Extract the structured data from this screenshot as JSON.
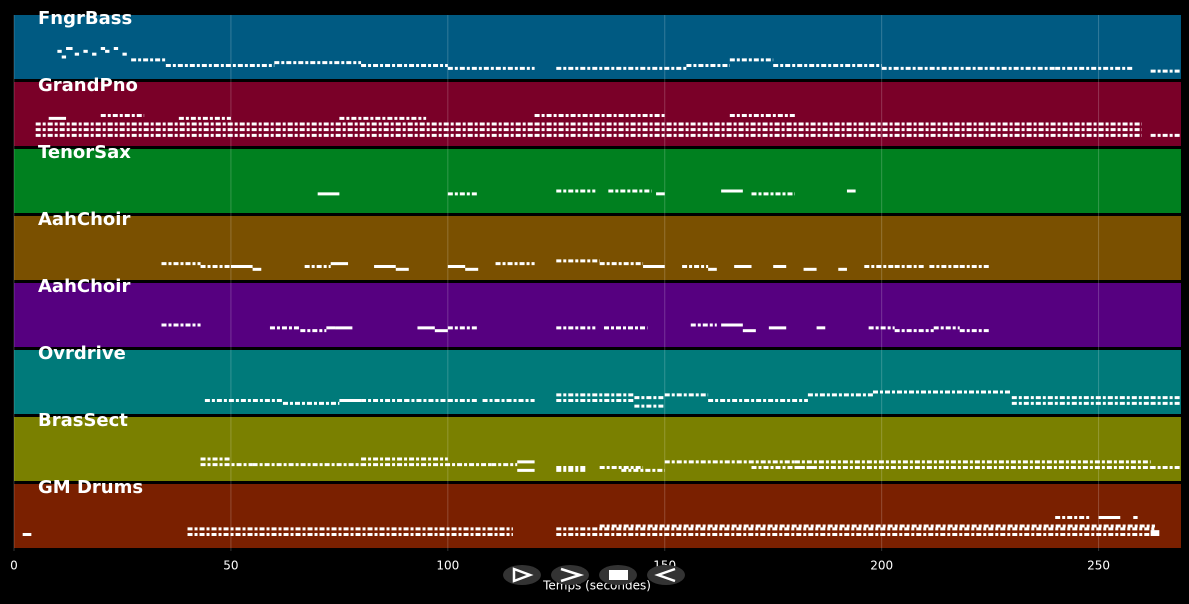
{
  "chart_data": {
    "type": "pianoroll",
    "xlabel": "Temps (secondes)",
    "xlim": [
      0,
      269
    ],
    "xticks": [
      0,
      50,
      100,
      150,
      200,
      250
    ],
    "plim": [
      0,
      12
    ],
    "grid": true,
    "tracks": [
      {
        "name": "FngrBass",
        "color": "#005a82",
        "notes": [
          [
            10,
            11,
            8
          ],
          [
            11,
            12,
            6
          ],
          [
            12,
            13.5,
            9
          ],
          [
            14,
            15,
            7
          ],
          [
            16,
            17,
            8
          ],
          [
            18,
            19,
            7
          ],
          [
            20,
            21,
            9
          ],
          [
            21,
            22,
            8
          ],
          [
            23,
            24,
            9
          ],
          [
            25,
            26,
            7
          ],
          [
            27,
            35,
            5
          ],
          [
            35,
            60,
            3
          ],
          [
            60,
            80,
            4
          ],
          [
            80,
            100,
            3
          ],
          [
            100,
            120,
            2
          ],
          [
            125,
            155,
            2
          ],
          [
            155,
            165,
            3
          ],
          [
            165,
            175,
            5
          ],
          [
            175,
            200,
            3
          ],
          [
            200,
            240,
            2
          ],
          [
            240,
            258,
            2
          ],
          [
            262,
            269,
            1
          ]
        ]
      },
      {
        "name": "GrandPno",
        "color": "#7a0028",
        "notes": [
          [
            5,
            120,
            6
          ],
          [
            5,
            120,
            4
          ],
          [
            5,
            120,
            2
          ],
          [
            120,
            260,
            6
          ],
          [
            120,
            260,
            4
          ],
          [
            120,
            260,
            2
          ],
          [
            262,
            269,
            2
          ],
          [
            8,
            12,
            8
          ],
          [
            20,
            30,
            9
          ],
          [
            38,
            50,
            8
          ],
          [
            75,
            95,
            8
          ],
          [
            120,
            150,
            9
          ],
          [
            165,
            180,
            9
          ]
        ]
      },
      {
        "name": "TenorSax",
        "color": "#00801f",
        "notes": [
          [
            70,
            75,
            5
          ],
          [
            100,
            107,
            5
          ],
          [
            125,
            134,
            6
          ],
          [
            137,
            147,
            6
          ],
          [
            148,
            150,
            5
          ],
          [
            163,
            168,
            6
          ],
          [
            170,
            180,
            5
          ],
          [
            192,
            194,
            6
          ]
        ]
      },
      {
        "name": "AahChoir",
        "color": "#7a5000",
        "notes": [
          [
            34,
            43,
            4
          ],
          [
            43,
            50,
            3
          ],
          [
            50,
            55,
            3
          ],
          [
            55,
            57,
            2
          ],
          [
            67,
            73,
            3
          ],
          [
            73,
            77,
            4
          ],
          [
            83,
            88,
            3
          ],
          [
            88,
            91,
            2
          ],
          [
            100,
            104,
            3
          ],
          [
            104,
            107,
            2
          ],
          [
            111,
            120,
            4
          ],
          [
            125,
            135,
            5
          ],
          [
            135,
            145,
            4
          ],
          [
            145,
            150,
            3
          ],
          [
            154,
            160,
            3
          ],
          [
            160,
            162,
            2
          ],
          [
            166,
            170,
            3
          ],
          [
            175,
            178,
            3
          ],
          [
            182,
            185,
            2
          ],
          [
            190,
            192,
            2
          ],
          [
            196,
            203,
            3
          ],
          [
            203,
            210,
            3
          ],
          [
            211,
            218,
            3
          ],
          [
            218,
            225,
            3
          ]
        ]
      },
      {
        "name": "AahChoir",
        "color": "#560080",
        "notes": [
          [
            34,
            43,
            6
          ],
          [
            59,
            66,
            5
          ],
          [
            66,
            72,
            4
          ],
          [
            72,
            74,
            5
          ],
          [
            74,
            78,
            5
          ],
          [
            93,
            97,
            5
          ],
          [
            97,
            100,
            4
          ],
          [
            100,
            107,
            5
          ],
          [
            125,
            134,
            5
          ],
          [
            136,
            146,
            5
          ],
          [
            156,
            162,
            6
          ],
          [
            163,
            168,
            6
          ],
          [
            168,
            171,
            4
          ],
          [
            174,
            178,
            5
          ],
          [
            185,
            187,
            5
          ],
          [
            197,
            203,
            5
          ],
          [
            203,
            212,
            4
          ],
          [
            212,
            218,
            5
          ],
          [
            218,
            225,
            4
          ]
        ]
      },
      {
        "name": "Ovrdrive",
        "color": "#007a7a",
        "notes": [
          [
            44,
            62,
            3
          ],
          [
            62,
            75,
            2
          ],
          [
            75,
            80,
            3
          ],
          [
            80,
            90,
            3
          ],
          [
            90,
            100,
            3
          ],
          [
            100,
            107,
            3
          ],
          [
            108,
            120,
            3
          ],
          [
            125,
            143,
            3
          ],
          [
            125,
            143,
            5
          ],
          [
            143,
            150,
            1
          ],
          [
            143,
            150,
            4
          ],
          [
            150,
            160,
            5
          ],
          [
            160,
            183,
            3
          ],
          [
            183,
            198,
            5
          ],
          [
            198,
            230,
            6
          ],
          [
            230,
            262,
            4
          ],
          [
            230,
            262,
            2
          ],
          [
            262,
            269,
            4
          ],
          [
            262,
            269,
            2
          ]
        ]
      },
      {
        "name": "BrasSect",
        "color": "#7a8000",
        "notes": [
          [
            43,
            50,
            6
          ],
          [
            43,
            55,
            4
          ],
          [
            55,
            80,
            4
          ],
          [
            80,
            110,
            4
          ],
          [
            80,
            100,
            6
          ],
          [
            110,
            116,
            4
          ],
          [
            116,
            120,
            5
          ],
          [
            116,
            120,
            2
          ],
          [
            125,
            132,
            2
          ],
          [
            125,
            132,
            3
          ],
          [
            135,
            145,
            3
          ],
          [
            140,
            150,
            2
          ],
          [
            150,
            180,
            5
          ],
          [
            170,
            185,
            3
          ],
          [
            180,
            262,
            5
          ],
          [
            180,
            262,
            3
          ],
          [
            262,
            269,
            3
          ]
        ]
      },
      {
        "name": "GM Drums",
        "color": "#7a2000",
        "notes": [
          [
            2,
            4,
            3
          ],
          [
            40,
            115,
            3
          ],
          [
            40,
            115,
            5
          ],
          [
            125,
            263,
            3
          ],
          [
            125,
            263,
            5
          ],
          [
            135,
            263,
            6
          ],
          [
            240,
            248,
            9
          ],
          [
            250,
            255,
            9
          ],
          [
            258,
            259,
            9
          ],
          [
            262,
            264,
            3
          ],
          [
            262,
            264,
            4
          ]
        ]
      }
    ]
  }
}
